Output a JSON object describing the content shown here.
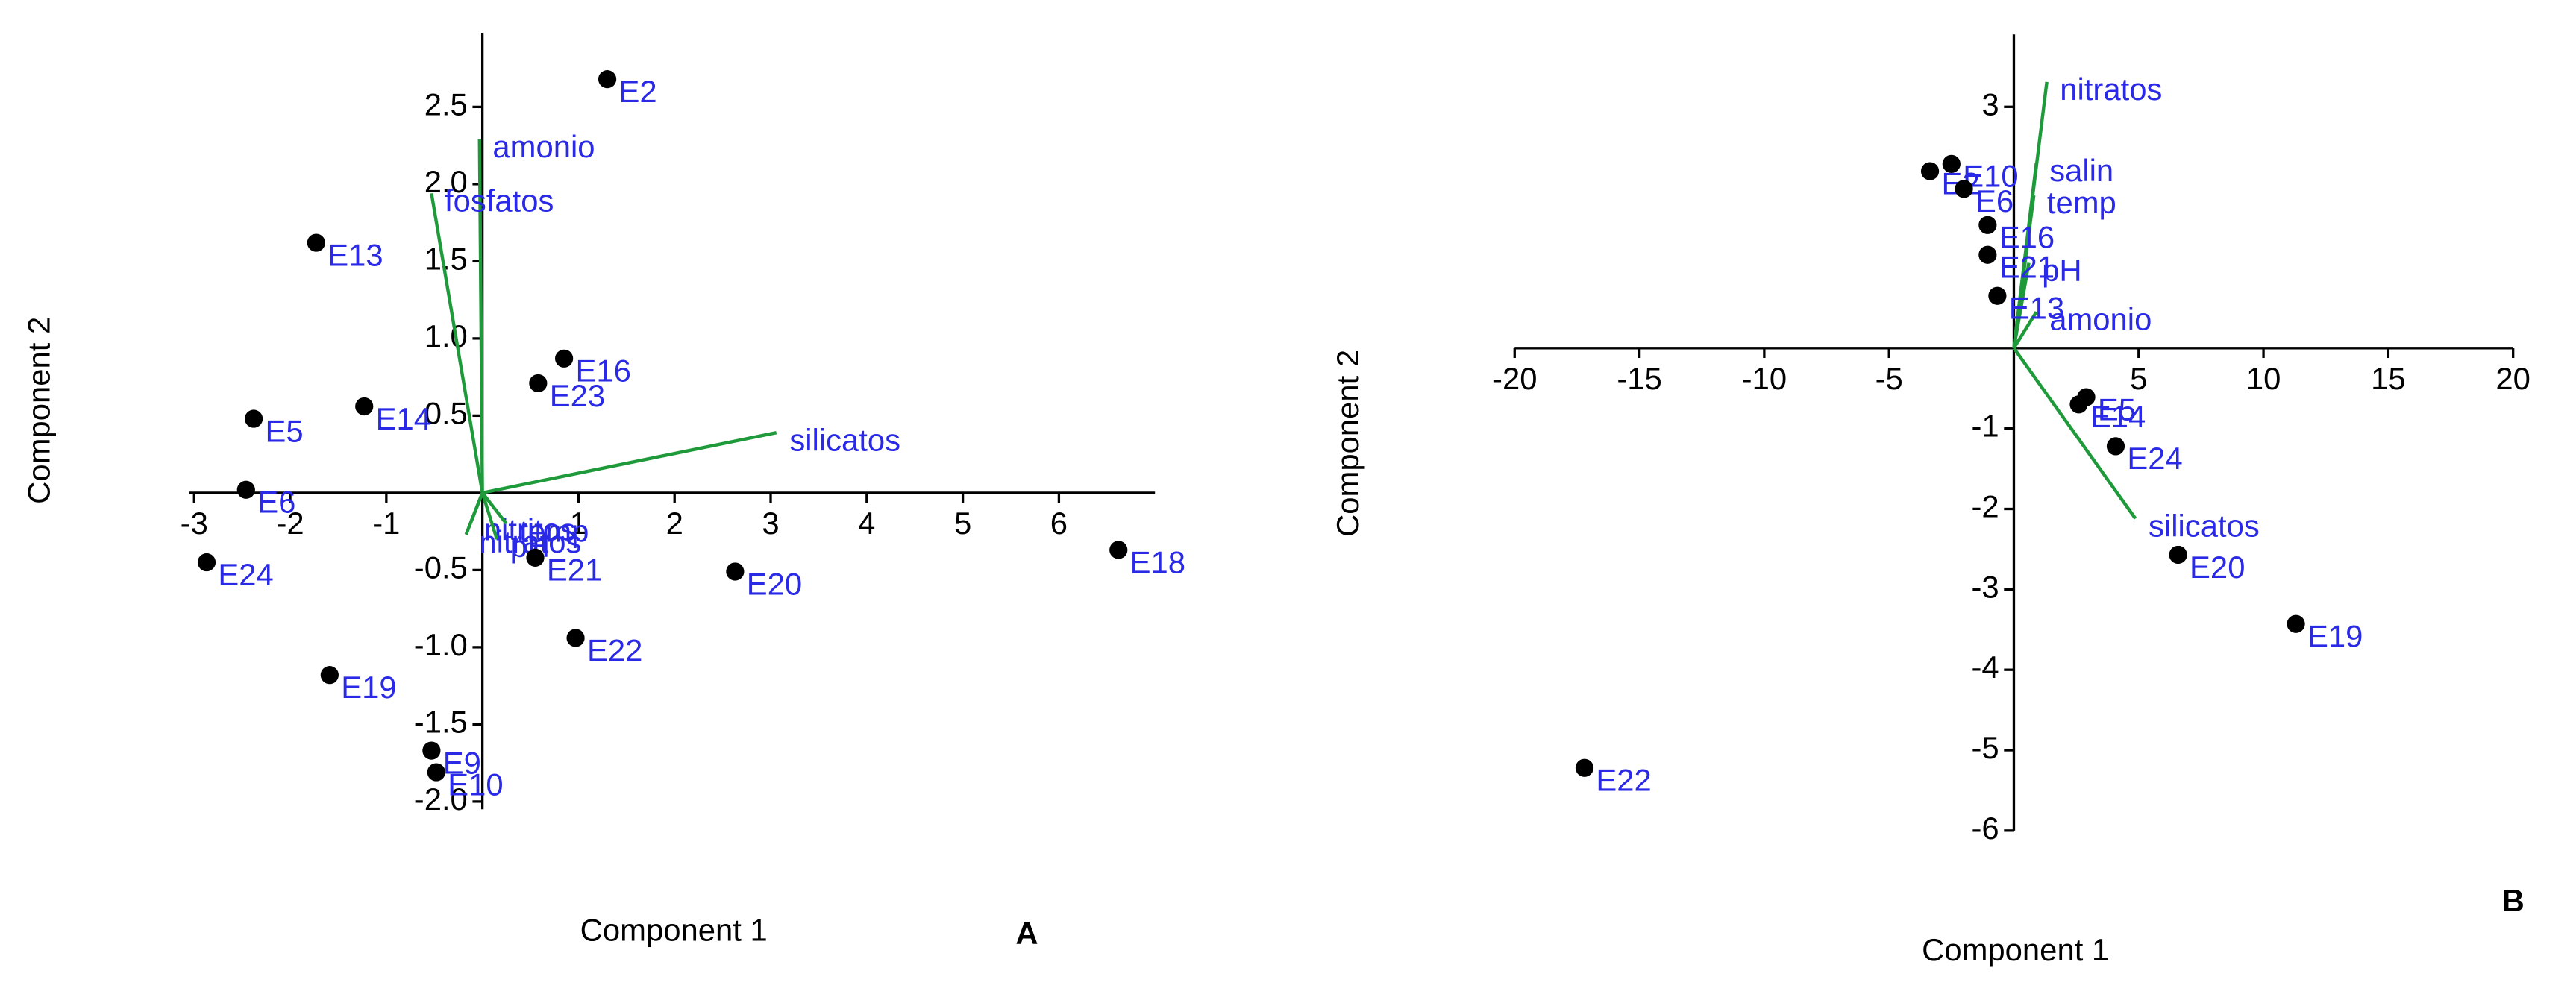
{
  "chart_data": [
    {
      "type": "biplot",
      "panel": "A",
      "x_label": "Component 1",
      "y_label": "Component 2",
      "xlim": [
        -3.05,
        7.0
      ],
      "ylim": [
        -2.05,
        2.98
      ],
      "xticks": [
        -3,
        -2,
        -1,
        1,
        2,
        3,
        4,
        5,
        6
      ],
      "yticks": [
        {
          "value": -2,
          "label": "-2.0"
        },
        -1.5,
        {
          "value": -1,
          "label": "-1.0"
        },
        -0.5,
        0.5,
        {
          "value": 1,
          "label": "1.0"
        },
        1.5,
        {
          "value": 2,
          "label": "2.0"
        },
        2.5
      ],
      "points": {
        "color": "#000000",
        "label_color": "#2a2ae6",
        "labels": [
          "E2",
          "E13",
          "E16",
          "E23",
          "E5",
          "E14",
          "E6",
          "E24",
          "E18",
          "E20",
          "E21",
          "E22",
          "E19",
          "E9",
          "E10"
        ],
        "x": [
          1.3,
          -1.73,
          0.85,
          0.58,
          -2.38,
          -1.23,
          -2.46,
          -2.87,
          6.62,
          2.63,
          0.55,
          0.97,
          -1.59,
          -0.53,
          -0.48
        ],
        "y": [
          2.68,
          1.62,
          0.87,
          0.71,
          0.48,
          0.56,
          0.02,
          -0.45,
          -0.37,
          -0.51,
          -0.42,
          -0.94,
          -1.18,
          -1.67,
          -1.81
        ]
      },
      "vectors": {
        "color": "#1f9a3a",
        "label_color": "#2a2ae6",
        "labels": [
          "silicatos",
          "amonio",
          "fosfatos",
          "nitritos",
          "nitratos",
          "temp",
          "pH"
        ],
        "x": [
          3.06,
          -0.03,
          -0.53,
          -0.12,
          -0.17,
          0.25,
          0.15
        ],
        "y": [
          0.39,
          2.29,
          1.94,
          -0.19,
          -0.27,
          -0.2,
          -0.3
        ]
      }
    },
    {
      "type": "biplot",
      "panel": "B",
      "x_label": "Component 1",
      "y_label": "Component 2",
      "xlim": [
        -20,
        20
      ],
      "ylim": [
        -6,
        3.9
      ],
      "xticks": [
        -20,
        -15,
        -10,
        -5,
        5,
        10,
        15,
        20
      ],
      "yticks": [
        -6,
        -5,
        -4,
        -3,
        -2,
        -1,
        3
      ],
      "points": {
        "color": "#000000",
        "label_color": "#2a2ae6",
        "labels": [
          "E22",
          "E19",
          "E20",
          "E24",
          "E5",
          "E14",
          "E10",
          "E2",
          "E6",
          "E16",
          "E21",
          "E13"
        ],
        "x": [
          -17.2,
          11.3,
          6.58,
          4.08,
          2.9,
          2.6,
          -2.5,
          -3.36,
          -2.0,
          -1.05,
          -1.05,
          -0.66
        ],
        "y": [
          -5.22,
          -3.43,
          -2.57,
          -1.22,
          -0.61,
          -0.7,
          2.29,
          2.2,
          1.98,
          1.53,
          1.16,
          0.65
        ]
      },
      "vectors": {
        "color": "#1f9a3a",
        "label_color": "#2a2ae6",
        "labels": [
          "nitratos",
          "silicatos",
          "salin",
          "temp",
          "pH",
          "amonio"
        ],
        "x": [
          1.32,
          4.87,
          0.9,
          0.8,
          0.6,
          0.9
        ],
        "y": [
          3.31,
          -2.12,
          2.3,
          1.9,
          1.06,
          0.45
        ]
      }
    }
  ]
}
